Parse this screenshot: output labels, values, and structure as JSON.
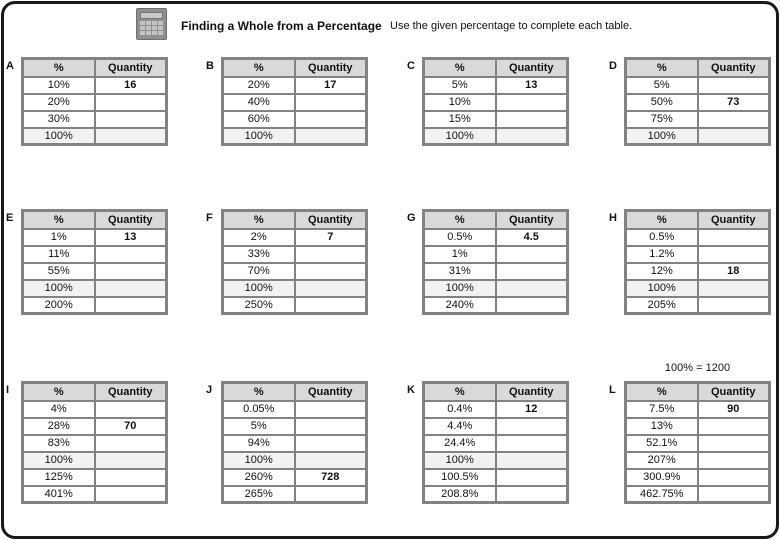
{
  "page": {
    "title": "Finding a Whole from a Percentage",
    "instruction": "Use the given percentage to complete each table.",
    "icon": "calculator-icon"
  },
  "column_headers": [
    "%",
    "Quantity"
  ],
  "note_above_table_l": "100% = 1200",
  "colors": {
    "table_border": "#828282",
    "header_fill": "#d9d9d9",
    "shaded_row_fill": "#f2f2f2",
    "page_border": "#191919"
  },
  "tables": [
    {
      "label": "A",
      "rows": [
        {
          "percent": "10%",
          "quantity": "16"
        },
        {
          "percent": "20%",
          "quantity": ""
        },
        {
          "percent": "30%",
          "quantity": ""
        },
        {
          "percent": "100%",
          "quantity": "",
          "shaded": true
        }
      ]
    },
    {
      "label": "B",
      "rows": [
        {
          "percent": "20%",
          "quantity": "17"
        },
        {
          "percent": "40%",
          "quantity": ""
        },
        {
          "percent": "60%",
          "quantity": ""
        },
        {
          "percent": "100%",
          "quantity": "",
          "shaded": true
        }
      ]
    },
    {
      "label": "C",
      "rows": [
        {
          "percent": "5%",
          "quantity": "13"
        },
        {
          "percent": "10%",
          "quantity": ""
        },
        {
          "percent": "15%",
          "quantity": ""
        },
        {
          "percent": "100%",
          "quantity": "",
          "shaded": true
        }
      ]
    },
    {
      "label": "D",
      "rows": [
        {
          "percent": "5%",
          "quantity": ""
        },
        {
          "percent": "50%",
          "quantity": "73"
        },
        {
          "percent": "75%",
          "quantity": ""
        },
        {
          "percent": "100%",
          "quantity": "",
          "shaded": true
        }
      ]
    },
    {
      "label": "E",
      "rows": [
        {
          "percent": "1%",
          "quantity": "13"
        },
        {
          "percent": "11%",
          "quantity": ""
        },
        {
          "percent": "55%",
          "quantity": ""
        },
        {
          "percent": "100%",
          "quantity": "",
          "shaded": true
        },
        {
          "percent": "200%",
          "quantity": ""
        }
      ]
    },
    {
      "label": "F",
      "rows": [
        {
          "percent": "2%",
          "quantity": "7"
        },
        {
          "percent": "33%",
          "quantity": ""
        },
        {
          "percent": "70%",
          "quantity": ""
        },
        {
          "percent": "100%",
          "quantity": "",
          "shaded": true
        },
        {
          "percent": "250%",
          "quantity": ""
        }
      ]
    },
    {
      "label": "G",
      "rows": [
        {
          "percent": "0.5%",
          "quantity": "4.5"
        },
        {
          "percent": "1%",
          "quantity": ""
        },
        {
          "percent": "31%",
          "quantity": ""
        },
        {
          "percent": "100%",
          "quantity": "",
          "shaded": true
        },
        {
          "percent": "240%",
          "quantity": ""
        }
      ]
    },
    {
      "label": "H",
      "rows": [
        {
          "percent": "0.5%",
          "quantity": ""
        },
        {
          "percent": "1.2%",
          "quantity": ""
        },
        {
          "percent": "12%",
          "quantity": "18"
        },
        {
          "percent": "100%",
          "quantity": "",
          "shaded": true
        },
        {
          "percent": "205%",
          "quantity": ""
        }
      ]
    },
    {
      "label": "I",
      "rows": [
        {
          "percent": "4%",
          "quantity": ""
        },
        {
          "percent": "28%",
          "quantity": "70"
        },
        {
          "percent": "83%",
          "quantity": ""
        },
        {
          "percent": "100%",
          "quantity": "",
          "shaded": true
        },
        {
          "percent": "125%",
          "quantity": ""
        },
        {
          "percent": "401%",
          "quantity": ""
        }
      ]
    },
    {
      "label": "J",
      "rows": [
        {
          "percent": "0.05%",
          "quantity": ""
        },
        {
          "percent": "5%",
          "quantity": ""
        },
        {
          "percent": "94%",
          "quantity": ""
        },
        {
          "percent": "100%",
          "quantity": "",
          "shaded": true
        },
        {
          "percent": "260%",
          "quantity": "728"
        },
        {
          "percent": "265%",
          "quantity": ""
        }
      ]
    },
    {
      "label": "K",
      "rows": [
        {
          "percent": "0.4%",
          "quantity": "12"
        },
        {
          "percent": "4.4%",
          "quantity": ""
        },
        {
          "percent": "24.4%",
          "quantity": ""
        },
        {
          "percent": "100%",
          "quantity": "",
          "shaded": true
        },
        {
          "percent": "100.5%",
          "quantity": ""
        },
        {
          "percent": "208.8%",
          "quantity": ""
        }
      ]
    },
    {
      "label": "L",
      "rows": [
        {
          "percent": "7.5%",
          "quantity": "90"
        },
        {
          "percent": "13%",
          "quantity": ""
        },
        {
          "percent": "52.1%",
          "quantity": ""
        },
        {
          "percent": "207%",
          "quantity": ""
        },
        {
          "percent": "300.9%",
          "quantity": ""
        },
        {
          "percent": "462.75%",
          "quantity": ""
        }
      ]
    }
  ]
}
